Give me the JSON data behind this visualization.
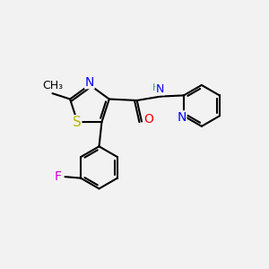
{
  "background_color": "#f2f2f2",
  "bond_color": "#000000",
  "bond_width": 1.5,
  "atom_colors": {
    "S": "#b8b800",
    "N": "#0000ff",
    "O": "#ff0000",
    "F": "#cc00cc",
    "C": "#000000",
    "H": "#4a9090"
  },
  "font_size": 10,
  "fig_size": [
    3.0,
    3.0
  ],
  "dpi": 100,
  "xlim": [
    0,
    10
  ],
  "ylim": [
    0,
    10
  ]
}
